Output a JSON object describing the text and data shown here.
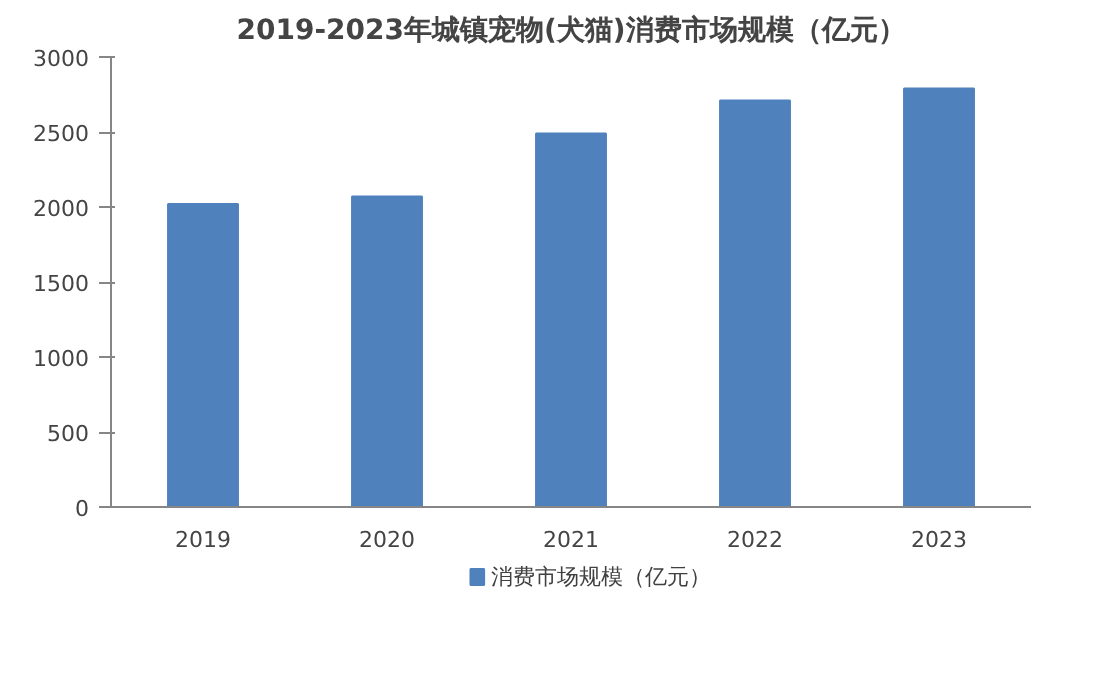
{
  "chart_data": {
    "type": "bar",
    "title": "2019-2023年城镇宠物(犬猫)消费市场规模（亿元）",
    "categories": [
      "2019",
      "2020",
      "2021",
      "2022",
      "2023"
    ],
    "series": [
      {
        "name": "消费市场规模（亿元）",
        "color": "#4f81bd",
        "values": [
          2020,
          2070,
          2490,
          2710,
          2790
        ]
      }
    ],
    "ylim": [
      0,
      3000
    ],
    "yticks": [
      0,
      500,
      1000,
      1500,
      2000,
      2500,
      3000
    ],
    "grid": false,
    "legend": "bottom"
  }
}
